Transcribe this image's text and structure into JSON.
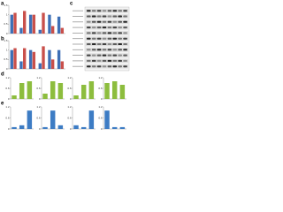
{
  "panel_labels": [
    "a",
    "b",
    "c",
    "d",
    "e"
  ],
  "chart_data": [
    {
      "type": "bar",
      "categories": [
        null,
        null,
        null,
        null,
        null,
        null
      ],
      "series": [
        {
          "color": "#3d6fb6",
          "values": [
            1.0,
            0.3,
            1.0,
            0.2,
            1.0,
            0.9
          ]
        },
        {
          "color": "#c9504b",
          "values": [
            1.1,
            1.2,
            1.0,
            1.1,
            0.4,
            0.3
          ]
        }
      ],
      "ylim": [
        0,
        1.5
      ],
      "yticks": [
        0,
        0.5,
        1,
        1.5
      ]
    },
    {
      "type": "bar",
      "categories": [
        null,
        null,
        null,
        null,
        null,
        null
      ],
      "series": [
        {
          "color": "#3d6fb6",
          "values": [
            1.0,
            0.4,
            1.0,
            0.3,
            1.0,
            1.0
          ]
        },
        {
          "color": "#c9504b",
          "values": [
            1.1,
            1.1,
            0.9,
            1.2,
            0.5,
            0.4
          ]
        }
      ],
      "ylim": [
        0,
        1.5
      ],
      "yticks": [
        0,
        0.5,
        1,
        1.5
      ]
    },
    {
      "type": "bar",
      "categories": [
        null,
        null,
        null
      ],
      "values": [
        0.2,
        0.9,
        1.0
      ],
      "color": "#8dbd3e",
      "ylim": [
        0,
        1.2
      ],
      "yticks": [
        0,
        0.6,
        1.2
      ]
    },
    {
      "type": "bar",
      "categories": [
        null,
        null,
        null
      ],
      "values": [
        0.3,
        1.0,
        0.9
      ],
      "color": "#8dbd3e",
      "ylim": [
        0,
        1.2
      ],
      "yticks": [
        0,
        0.6,
        1.2
      ]
    },
    {
      "type": "bar",
      "categories": [
        null,
        null,
        null
      ],
      "values": [
        0.2,
        0.8,
        1.0
      ],
      "color": "#8dbd3e",
      "ylim": [
        0,
        1.2
      ],
      "yticks": [
        0,
        0.6,
        1.2
      ]
    },
    {
      "type": "bar",
      "categories": [
        null,
        null,
        null
      ],
      "values": [
        0.9,
        1.0,
        0.8
      ],
      "color": "#8dbd3e",
      "ylim": [
        0,
        1.2
      ],
      "yticks": [
        0,
        0.6,
        1.2
      ]
    },
    {
      "type": "bar",
      "categories": [
        null,
        null,
        null
      ],
      "values": [
        0.1,
        0.2,
        1.0
      ],
      "color": "#3d7cc4",
      "ylim": [
        0,
        1.2
      ],
      "yticks": [
        0,
        0.6,
        1.2
      ]
    },
    {
      "type": "bar",
      "categories": [
        null,
        null,
        null
      ],
      "values": [
        0.1,
        1.0,
        0.2
      ],
      "color": "#3d7cc4",
      "ylim": [
        0,
        1.2
      ],
      "yticks": [
        0,
        0.6,
        1.2
      ]
    },
    {
      "type": "bar",
      "categories": [
        null,
        null,
        null
      ],
      "values": [
        0.2,
        0.1,
        1.0
      ],
      "color": "#3d7cc4",
      "ylim": [
        0,
        1.2
      ],
      "yticks": [
        0,
        0.6,
        1.2
      ]
    },
    {
      "type": "bar",
      "categories": [
        null,
        null,
        null
      ],
      "values": [
        1.0,
        0.1,
        0.1
      ],
      "color": "#3d7cc4",
      "ylim": [
        0,
        1.2
      ],
      "yticks": [
        0,
        0.6,
        1.2
      ]
    }
  ]
}
